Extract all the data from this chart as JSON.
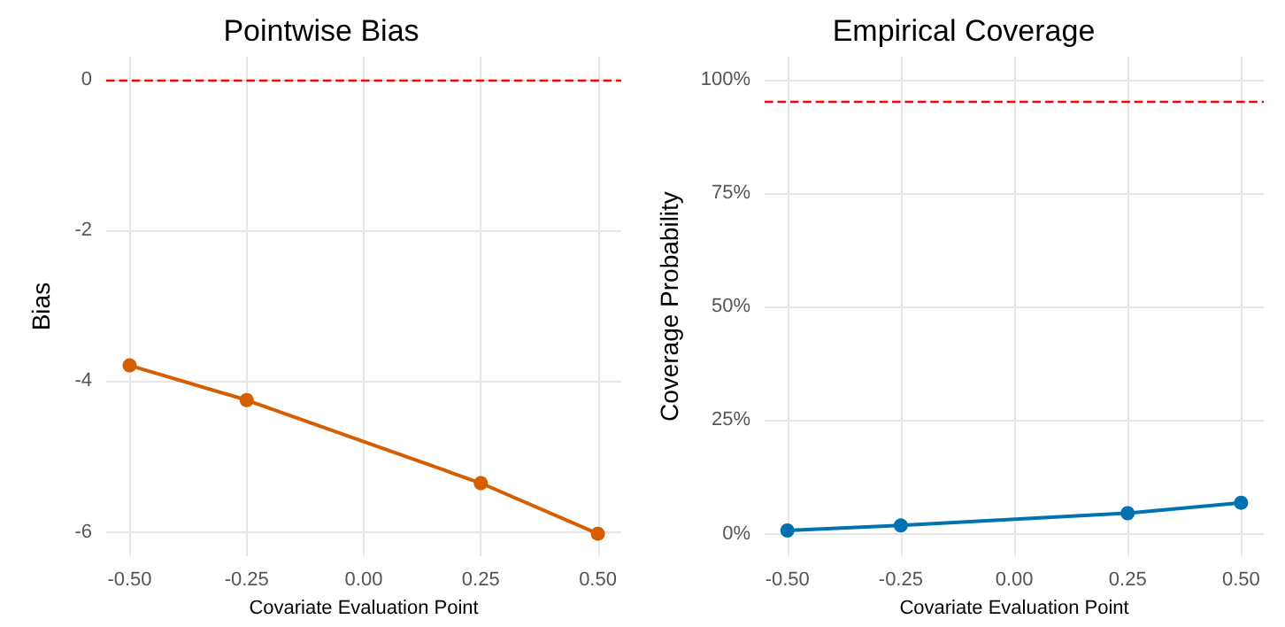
{
  "chart_data": [
    {
      "type": "line",
      "title": "Pointwise Bias",
      "xlabel": "Covariate Evaluation Point",
      "ylabel": "Bias",
      "x": [
        -0.5,
        -0.25,
        0.25,
        0.5
      ],
      "series": [
        {
          "color": "#d55e00",
          "values": [
            -3.79,
            -4.25,
            -5.35,
            -6.02
          ]
        }
      ],
      "xlim": [
        -0.55,
        0.55
      ],
      "xticks": [
        {
          "value": -0.5,
          "label": "-0.50"
        },
        {
          "value": -0.25,
          "label": "-0.25"
        },
        {
          "value": 0,
          "label": "0.00"
        },
        {
          "value": 0.25,
          "label": "0.25"
        },
        {
          "value": 0.5,
          "label": "0.50"
        }
      ],
      "ylim": [
        -6.32,
        0.3
      ],
      "yticks": [
        -6,
        -4,
        -2,
        0
      ],
      "ref_lines": [
        {
          "axis": "y",
          "value": 0,
          "color": "#ff0000",
          "line_style": "dashed"
        }
      ],
      "grid": true,
      "marker": "circle",
      "line_style": "solid"
    },
    {
      "type": "line",
      "title": "Empirical Coverage",
      "xlabel": "Covariate Evaluation Point",
      "ylabel": "Coverage Probability",
      "x": [
        -0.5,
        -0.25,
        0.25,
        0.5
      ],
      "series": [
        {
          "color": "#0072b2",
          "values": [
            0.7,
            1.8,
            4.5,
            6.8
          ]
        }
      ],
      "xlim": [
        -0.55,
        0.55
      ],
      "xticks": [
        {
          "value": -0.5,
          "label": "-0.50"
        },
        {
          "value": -0.25,
          "label": "-0.25"
        },
        {
          "value": 0,
          "label": "0.00"
        },
        {
          "value": 0.25,
          "label": "0.25"
        },
        {
          "value": 0.5,
          "label": "0.50"
        }
      ],
      "ylim": [
        -5,
        105
      ],
      "yticks": [
        {
          "value": 0,
          "label": "0%"
        },
        {
          "value": 25,
          "label": "25%"
        },
        {
          "value": 50,
          "label": "50%"
        },
        {
          "value": 75,
          "label": "75%"
        },
        {
          "value": 100,
          "label": "100%"
        }
      ],
      "ref_lines": [
        {
          "axis": "y",
          "value": 95,
          "color": "#ff0000",
          "line_style": "dashed"
        }
      ],
      "grid": true,
      "marker": "circle",
      "line_style": "solid"
    }
  ]
}
